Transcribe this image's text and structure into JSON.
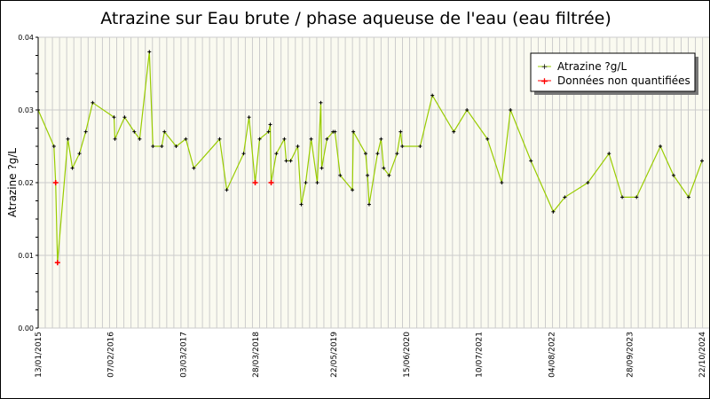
{
  "chart_data": {
    "type": "line",
    "title": "Atrazine sur Eau brute / phase aqueuse de l'eau (eau filtrée)",
    "xlabel": "",
    "ylabel": "Atrazine ?g/L",
    "xlim": [
      "2015-01-13",
      "2024-10-22"
    ],
    "ylim": [
      0,
      0.04
    ],
    "yticks": [
      "0.00",
      "0.01",
      "0.02",
      "0.03",
      "0.04"
    ],
    "xticks": [
      "13/01/2015",
      "07/02/2016",
      "03/03/2017",
      "28/03/2018",
      "22/05/2019",
      "15/06/2020",
      "10/07/2021",
      "04/08/2022",
      "28/09/2023",
      "22/10/2024"
    ],
    "xtick_dates": [
      "2015-01-13",
      "2016-02-07",
      "2017-03-03",
      "2018-03-28",
      "2019-05-22",
      "2020-06-15",
      "2021-07-10",
      "2022-08-04",
      "2023-09-28",
      "2024-10-22"
    ],
    "grid": true,
    "legend_position": "top-right",
    "series": [
      {
        "name": "Atrazine ?g/L",
        "color": "#99cc00",
        "marker_color": "#000000"
      },
      {
        "name": "Données non quantifiées",
        "color": "#ff0000"
      }
    ],
    "points": [
      [
        "2015-01-13",
        0.03,
        0
      ],
      [
        "2015-04-08",
        0.025,
        0
      ],
      [
        "2015-04-17",
        0.02,
        1
      ],
      [
        "2015-04-27",
        0.009,
        1
      ],
      [
        "2015-06-22",
        0.026,
        0
      ],
      [
        "2015-07-16",
        0.022,
        0
      ],
      [
        "2015-08-23",
        0.024,
        0
      ],
      [
        "2015-09-26",
        0.027,
        0
      ],
      [
        "2015-11-02",
        0.031,
        0
      ],
      [
        "2016-02-25",
        0.029,
        0
      ],
      [
        "2016-03-01",
        0.026,
        0
      ],
      [
        "2016-04-22",
        0.029,
        0
      ],
      [
        "2016-06-13",
        0.027,
        0
      ],
      [
        "2016-07-12",
        0.026,
        0
      ],
      [
        "2016-09-02",
        0.038,
        0
      ],
      [
        "2016-09-21",
        0.025,
        0
      ],
      [
        "2016-11-08",
        0.025,
        0
      ],
      [
        "2016-11-22",
        0.027,
        0
      ],
      [
        "2017-01-24",
        0.025,
        0
      ],
      [
        "2017-03-17",
        0.026,
        0
      ],
      [
        "2017-04-29",
        0.022,
        0
      ],
      [
        "2017-09-15",
        0.026,
        0
      ],
      [
        "2017-10-23",
        0.019,
        0
      ],
      [
        "2018-01-22",
        0.024,
        0
      ],
      [
        "2018-02-20",
        0.029,
        0
      ],
      [
        "2018-03-25",
        0.02,
        1
      ],
      [
        "2018-04-18",
        0.026,
        0
      ],
      [
        "2018-06-05",
        0.027,
        0
      ],
      [
        "2018-06-14",
        0.028,
        0
      ],
      [
        "2018-06-19",
        0.02,
        1
      ],
      [
        "2018-07-17",
        0.024,
        0
      ],
      [
        "2018-08-29",
        0.026,
        0
      ],
      [
        "2018-09-08",
        0.023,
        0
      ],
      [
        "2018-10-02",
        0.023,
        0
      ],
      [
        "2018-11-09",
        0.025,
        0
      ],
      [
        "2018-11-28",
        0.017,
        0
      ],
      [
        "2018-12-22",
        0.02,
        0
      ],
      [
        "2019-01-20",
        0.026,
        0
      ],
      [
        "2019-02-22",
        0.02,
        0
      ],
      [
        "2019-03-13",
        0.031,
        0
      ],
      [
        "2019-03-18",
        0.022,
        0
      ],
      [
        "2019-04-15",
        0.026,
        0
      ],
      [
        "2019-05-18",
        0.027,
        0
      ],
      [
        "2019-05-28",
        0.027,
        0
      ],
      [
        "2019-06-25",
        0.021,
        0
      ],
      [
        "2019-08-30",
        0.019,
        0
      ],
      [
        "2019-09-04",
        0.027,
        0
      ],
      [
        "2019-11-09",
        0.024,
        0
      ],
      [
        "2019-11-19",
        0.021,
        0
      ],
      [
        "2019-11-28",
        0.017,
        0
      ],
      [
        "2020-01-12",
        0.024,
        0
      ],
      [
        "2020-01-31",
        0.026,
        0
      ],
      [
        "2020-02-14",
        0.022,
        0
      ],
      [
        "2020-03-14",
        0.021,
        0
      ],
      [
        "2020-04-26",
        0.024,
        0
      ],
      [
        "2020-05-15",
        0.027,
        0
      ],
      [
        "2020-05-24",
        0.025,
        0
      ],
      [
        "2020-08-28",
        0.025,
        0
      ],
      [
        "2020-11-02",
        0.032,
        0
      ],
      [
        "2021-02-25",
        0.027,
        0
      ],
      [
        "2021-05-07",
        0.03,
        0
      ],
      [
        "2021-08-25",
        0.026,
        0
      ],
      [
        "2021-11-10",
        0.02,
        0
      ],
      [
        "2021-12-27",
        0.03,
        0
      ],
      [
        "2022-04-16",
        0.023,
        0
      ],
      [
        "2022-08-14",
        0.016,
        0
      ],
      [
        "2022-10-15",
        0.018,
        0
      ],
      [
        "2023-02-16",
        0.02,
        0
      ],
      [
        "2023-06-10",
        0.024,
        0
      ],
      [
        "2023-08-20",
        0.018,
        0
      ],
      [
        "2023-11-05",
        0.018,
        0
      ],
      [
        "2024-03-12",
        0.025,
        0
      ],
      [
        "2024-05-22",
        0.021,
        0
      ],
      [
        "2024-08-11",
        0.018,
        0
      ],
      [
        "2024-10-22",
        0.023,
        0
      ]
    ],
    "colors": {
      "plot_background": "#fafaf0",
      "grid": "#cccccc",
      "line": "#99cc00",
      "non_quantified": "#ff0000"
    }
  }
}
